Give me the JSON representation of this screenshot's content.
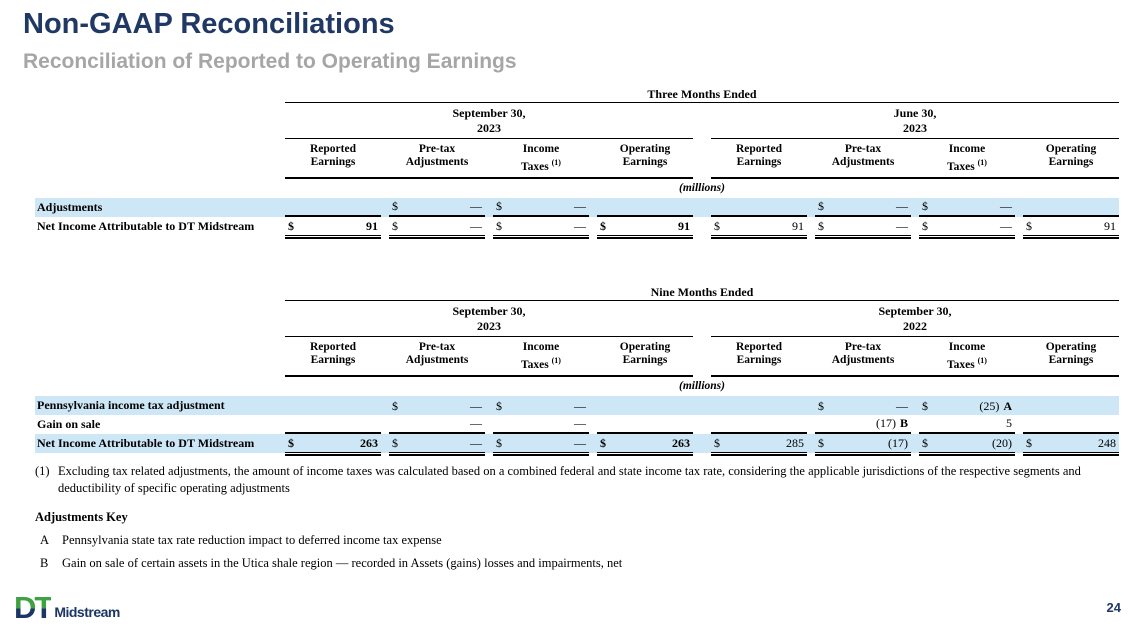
{
  "slide": {
    "title": "Non-GAAP Reconciliations",
    "subtitle": "Reconciliation of Reported to Operating Earnings",
    "page_number": "24",
    "logo_dt": "DT",
    "logo_wordmark": "Midstream"
  },
  "colors": {
    "navy": "#1F3864",
    "subtitle_gray": "#A6A6A6",
    "row_highlight": "#CDE7F6",
    "logo_green": "#3FA142",
    "logo_navy": "#1B3665"
  },
  "column_headers": [
    {
      "line1": "Reported",
      "line2": "Earnings"
    },
    {
      "line1": "Pre-tax",
      "line2": "Adjustments"
    },
    {
      "line1": "Income",
      "line2": "Taxes",
      "sup": "(1)"
    },
    {
      "line1": "Operating",
      "line2": "Earnings"
    }
  ],
  "tables": [
    {
      "period_title": "Three Months Ended",
      "units_label": "(millions)",
      "groups": [
        {
          "date_line1": "September 30,",
          "date_line2": "2023"
        },
        {
          "date_line1": "June 30,",
          "date_line2": "2023"
        }
      ],
      "rows": [
        {
          "label": "Adjustments",
          "highlight": true,
          "underline": "single",
          "cells": [
            {
              "cur": "",
              "val": "",
              "note": ""
            },
            {
              "cur": "$",
              "val": "—",
              "note": ""
            },
            {
              "cur": "$",
              "val": "—",
              "note": ""
            },
            {
              "cur": "",
              "val": "",
              "note": ""
            },
            {
              "cur": "",
              "val": "",
              "note": ""
            },
            {
              "cur": "$",
              "val": "—",
              "note": ""
            },
            {
              "cur": "$",
              "val": "—",
              "note": ""
            },
            {
              "cur": "",
              "val": "",
              "note": ""
            }
          ]
        },
        {
          "label": "Net Income Attributable to DT Midstream",
          "highlight": false,
          "underline": "double",
          "cells": [
            {
              "cur": "$",
              "val": "91",
              "note": "",
              "bold": true
            },
            {
              "cur": "$",
              "val": "—",
              "note": ""
            },
            {
              "cur": "$",
              "val": "—",
              "note": ""
            },
            {
              "cur": "$",
              "val": "91",
              "note": "",
              "bold": true
            },
            {
              "cur": "$",
              "val": "91",
              "note": ""
            },
            {
              "cur": "$",
              "val": "—",
              "note": ""
            },
            {
              "cur": "$",
              "val": "—",
              "note": ""
            },
            {
              "cur": "$",
              "val": "91",
              "note": ""
            }
          ]
        }
      ]
    },
    {
      "period_title": "Nine Months Ended",
      "units_label": "(millions)",
      "groups": [
        {
          "date_line1": "September 30,",
          "date_line2": "2023"
        },
        {
          "date_line1": "September 30,",
          "date_line2": "2022"
        }
      ],
      "rows": [
        {
          "label": "Pennsylvania income tax adjustment",
          "highlight": true,
          "underline": "none",
          "cells": [
            {
              "cur": "",
              "val": "",
              "note": ""
            },
            {
              "cur": "$",
              "val": "—",
              "note": ""
            },
            {
              "cur": "$",
              "val": "—",
              "note": ""
            },
            {
              "cur": "",
              "val": "",
              "note": ""
            },
            {
              "cur": "",
              "val": "",
              "note": ""
            },
            {
              "cur": "$",
              "val": "—",
              "note": ""
            },
            {
              "cur": "$",
              "val": "(25)",
              "note": "A"
            },
            {
              "cur": "",
              "val": "",
              "note": ""
            }
          ]
        },
        {
          "label": "Gain on sale",
          "highlight": false,
          "underline": "single",
          "cells": [
            {
              "cur": "",
              "val": "",
              "note": ""
            },
            {
              "cur": "",
              "val": "—",
              "note": ""
            },
            {
              "cur": "",
              "val": "—",
              "note": ""
            },
            {
              "cur": "",
              "val": "",
              "note": ""
            },
            {
              "cur": "",
              "val": "",
              "note": ""
            },
            {
              "cur": "",
              "val": "(17)",
              "note": "B"
            },
            {
              "cur": "",
              "val": "5",
              "note": ""
            },
            {
              "cur": "",
              "val": "",
              "note": ""
            }
          ]
        },
        {
          "label": "Net Income Attributable to DT Midstream",
          "highlight": true,
          "underline": "double",
          "cells": [
            {
              "cur": "$",
              "val": "263",
              "note": "",
              "bold": true
            },
            {
              "cur": "$",
              "val": "—",
              "note": ""
            },
            {
              "cur": "$",
              "val": "—",
              "note": ""
            },
            {
              "cur": "$",
              "val": "263",
              "note": "",
              "bold": true
            },
            {
              "cur": "$",
              "val": "285",
              "note": ""
            },
            {
              "cur": "$",
              "val": "(17)",
              "note": ""
            },
            {
              "cur": "$",
              "val": "(20)",
              "note": ""
            },
            {
              "cur": "$",
              "val": "248",
              "note": ""
            }
          ]
        }
      ]
    }
  ],
  "footnotes": {
    "note1_marker": "(1)",
    "note1_text": "Excluding tax related adjustments, the amount of income taxes was calculated based on a combined federal and state income tax rate, considering the applicable jurisdictions of the respective segments and deductibility of specific operating adjustments",
    "adjustments_key_title": "Adjustments Key",
    "items": [
      {
        "key": "A",
        "text": "Pennsylvania state tax rate reduction impact to deferred income tax expense"
      },
      {
        "key": "B",
        "text": "Gain on sale of certain assets in the Utica shale region — recorded in Assets (gains) losses and impairments, net"
      }
    ]
  }
}
